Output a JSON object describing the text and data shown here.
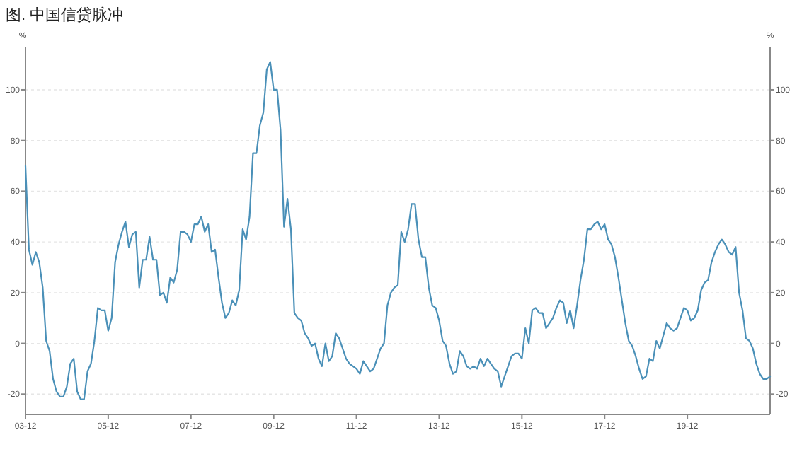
{
  "chart_data": {
    "type": "line",
    "title": "图. 中国信贷脉冲",
    "ylabel": "%",
    "y2label": "%",
    "categories": [
      "03-12",
      null,
      null,
      null,
      null,
      null,
      null,
      null,
      null,
      null,
      null,
      null,
      null,
      null,
      null,
      null,
      null,
      null,
      null,
      null,
      null,
      null,
      null,
      null,
      "05-12",
      null,
      null,
      null,
      null,
      null,
      null,
      null,
      null,
      null,
      null,
      null,
      null,
      null,
      null,
      null,
      null,
      null,
      null,
      null,
      null,
      null,
      null,
      null,
      "07-12",
      null,
      null,
      null,
      null,
      null,
      null,
      null,
      null,
      null,
      null,
      null,
      null,
      null,
      null,
      null,
      null,
      null,
      null,
      null,
      null,
      null,
      null,
      null,
      "09-12",
      null,
      null,
      null,
      null,
      null,
      null,
      null,
      null,
      null,
      null,
      null,
      null,
      null,
      null,
      null,
      null,
      null,
      null,
      null,
      null,
      null,
      null,
      null,
      "11-12",
      null,
      null,
      null,
      null,
      null,
      null,
      null,
      null,
      null,
      null,
      null,
      null,
      null,
      null,
      null,
      null,
      null,
      null,
      null,
      null,
      null,
      null,
      null,
      "13-12",
      null,
      null,
      null,
      null,
      null,
      null,
      null,
      null,
      null,
      null,
      null,
      null,
      null,
      null,
      null,
      null,
      null,
      null,
      null,
      null,
      null,
      null,
      null,
      "15-12",
      null,
      null,
      null,
      null,
      null,
      null,
      null,
      null,
      null,
      null,
      null,
      null,
      null,
      null,
      null,
      null,
      null,
      null,
      null,
      null,
      null,
      null,
      null,
      "17-12",
      null,
      null,
      null,
      null,
      null,
      null,
      null,
      null,
      null,
      null,
      null,
      null,
      null,
      null,
      null,
      null,
      null,
      null,
      null,
      null,
      null,
      null,
      null,
      "19-12",
      null,
      null,
      null,
      null,
      null,
      null,
      null,
      null,
      null,
      null,
      null,
      null,
      null,
      null,
      null,
      null,
      null,
      null,
      null,
      null,
      null,
      null,
      null,
      null
    ],
    "series": [
      {
        "color": "#4a90b8",
        "values": [
          70,
          37,
          31,
          36,
          32,
          22,
          1,
          -3,
          -14,
          -19,
          -21,
          -21,
          -17,
          -8,
          -6,
          -19,
          -22,
          -22,
          -11,
          -8,
          1,
          14,
          13,
          13,
          5,
          10,
          32,
          39,
          44,
          48,
          38,
          43,
          44,
          22,
          33,
          33,
          42,
          33,
          33,
          19,
          20,
          16,
          26,
          24,
          29,
          44,
          44,
          43,
          40,
          47,
          47,
          50,
          44,
          47,
          36,
          37,
          26,
          16,
          10,
          12,
          17,
          15,
          21,
          45,
          41,
          50,
          75,
          75,
          86,
          91,
          108,
          111,
          100,
          100,
          84,
          46,
          57,
          45,
          12,
          10,
          9,
          4,
          2,
          -1,
          0,
          -6,
          -9,
          0,
          -7,
          -5,
          4,
          2,
          -2,
          -6,
          -8,
          -9,
          -10,
          -12,
          -7,
          -9,
          -11,
          -10,
          -6,
          -2,
          0,
          15,
          20,
          22,
          23,
          44,
          40,
          45,
          55,
          55,
          41,
          34,
          34,
          22,
          15,
          14,
          9,
          1,
          -1,
          -8,
          -12,
          -11,
          -3,
          -5,
          -9,
          -10,
          -9,
          -10,
          -6,
          -9,
          -6,
          -8,
          -10,
          -11,
          -17,
          -13,
          -9,
          -5,
          -4,
          -4,
          -6,
          6,
          0,
          13,
          14,
          12,
          12,
          6,
          8,
          10,
          14,
          17,
          16,
          8,
          13,
          6,
          15,
          25,
          33,
          45,
          45,
          47,
          48,
          45,
          47,
          41,
          39,
          34,
          26,
          17,
          8,
          1,
          -1,
          -5,
          -10,
          -14,
          -13,
          -6,
          -7,
          1,
          -2,
          3,
          8,
          6,
          5,
          6,
          10,
          14,
          13,
          9,
          10,
          13,
          21,
          24,
          25,
          32,
          36,
          39,
          41,
          39,
          36,
          35,
          38,
          20,
          13,
          2,
          1,
          -2,
          -8,
          -12,
          -14,
          -14,
          -13
        ]
      }
    ],
    "ylim": [
      -28,
      117
    ],
    "yticks": [
      -20,
      0,
      20,
      40,
      60,
      80,
      100
    ],
    "y2lim": [
      -28,
      117
    ],
    "y2ticks": [
      -20,
      0,
      20,
      40,
      60,
      80,
      100
    ],
    "grid": "y",
    "line_style": "solid"
  }
}
